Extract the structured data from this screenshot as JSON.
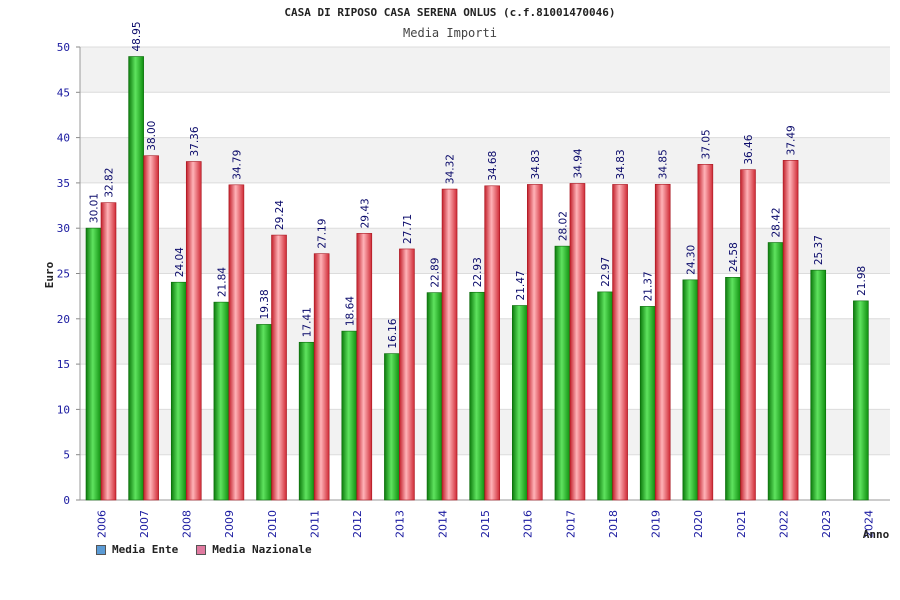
{
  "chart_data": {
    "type": "bar",
    "title": "CASA DI RIPOSO CASA SERENA ONLUS (c.f.81001470046)",
    "subtitle": "Media Importi",
    "xlabel": "Anno",
    "ylabel": "Euro",
    "ylim": [
      0,
      50
    ],
    "yticks": [
      "0",
      "5",
      "10",
      "15",
      "20",
      "25",
      "30",
      "35",
      "40",
      "45",
      "50"
    ],
    "categories": [
      "2006",
      "2007",
      "2008",
      "2009",
      "2010",
      "2011",
      "2012",
      "2013",
      "2014",
      "2015",
      "2016",
      "2017",
      "2018",
      "2019",
      "2020",
      "2021",
      "2022",
      "2023",
      "2024"
    ],
    "series": [
      {
        "name": "Media Ente",
        "color": "#19b319",
        "values": [
          30.01,
          48.95,
          24.04,
          21.84,
          19.38,
          17.41,
          18.64,
          16.16,
          22.89,
          22.93,
          21.47,
          28.02,
          22.97,
          21.37,
          24.3,
          24.58,
          28.42,
          25.37,
          21.98
        ],
        "labels": [
          "30.01",
          "48.95",
          "24.04",
          "21.84",
          "19.38",
          "17.41",
          "18.64",
          "16.16",
          "22.89",
          "22.93",
          "21.47",
          "28.02",
          "22.97",
          "21.37",
          "24.30",
          "24.58",
          "28.42",
          "25.37",
          "21.98"
        ]
      },
      {
        "name": "Media Nazionale",
        "color": "#e8454f",
        "values": [
          32.82,
          38.0,
          37.36,
          34.79,
          29.24,
          27.19,
          29.43,
          27.71,
          34.32,
          34.68,
          34.83,
          34.94,
          34.83,
          34.85,
          37.05,
          36.46,
          37.49,
          null,
          null
        ],
        "labels": [
          "32.82",
          "38.00",
          "37.36",
          "34.79",
          "29.24",
          "27.19",
          "29.43",
          "27.71",
          "34.32",
          "34.68",
          "34.83",
          "34.94",
          "34.83",
          "34.85",
          "37.05",
          "36.46",
          "37.49",
          null,
          null
        ]
      }
    ],
    "legend": [
      {
        "label": "Media Ente",
        "color": "#5b9bd5"
      },
      {
        "label": "Media Nazionale",
        "color": "#e07aa0"
      }
    ]
  }
}
